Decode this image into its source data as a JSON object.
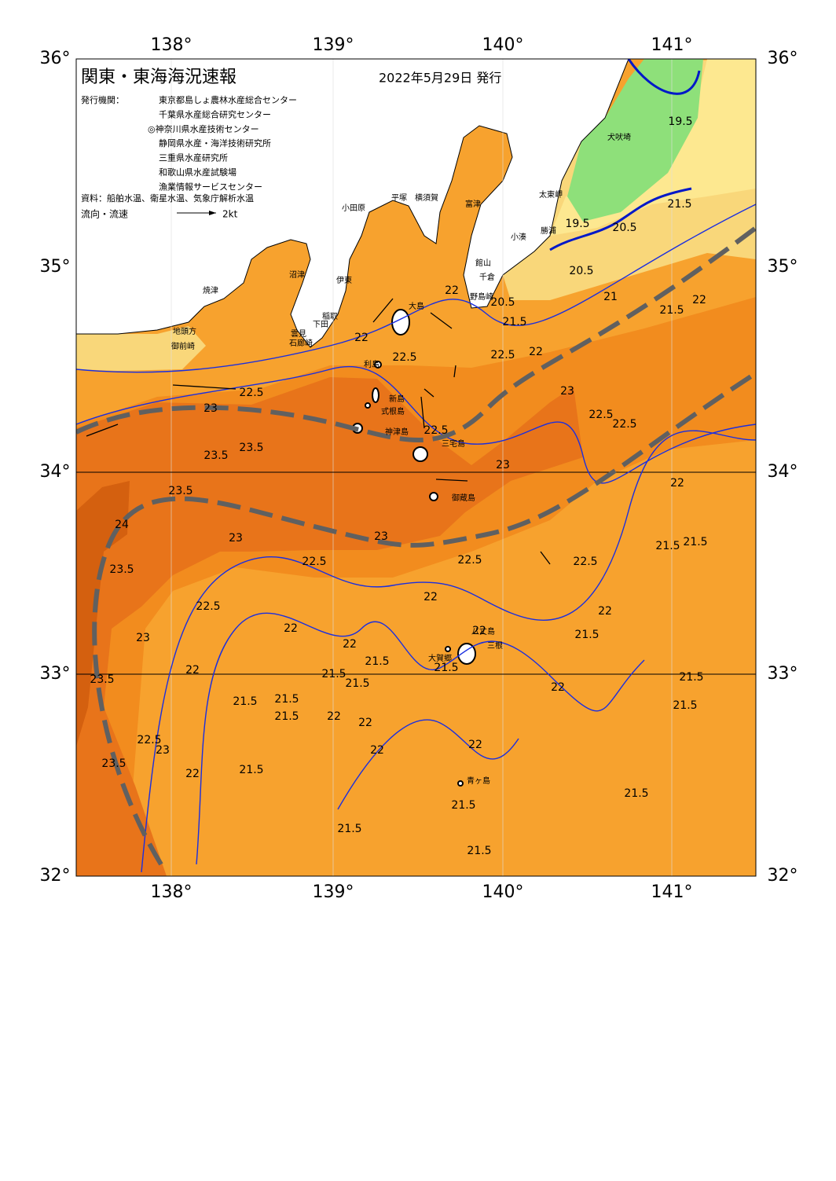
{
  "header": {
    "title": "関東・東海海況速報",
    "date": "2022年5月29日 発行"
  },
  "publisher": {
    "label": "発行機関：",
    "items": [
      "東京都島しょ農林水産総合センター",
      "千葉県水産総合研究センター",
      "◎神奈川県水産技術センター",
      "静岡県水産・海洋技術研究所",
      "三重県水産研究所",
      "和歌山県水産試験場",
      "漁業情報サービスセンター"
    ]
  },
  "source": "資料：船舶水温、衛星水温、気象庁解析水温",
  "legend": {
    "label": "流向・流速",
    "speed": "2kt"
  },
  "axes": {
    "lon": [
      "138°",
      "139°",
      "140°",
      "141°"
    ],
    "lat": [
      "36°",
      "35°",
      "34°",
      "33°",
      "32°"
    ]
  },
  "places": [
    "小田原",
    "平塚",
    "横須賀",
    "富津",
    "館山",
    "千倉",
    "野島崎",
    "大島",
    "利島",
    "新島",
    "式根島",
    "神津島",
    "三宅島",
    "御蔵島",
    "八丈島",
    "三根",
    "大賀郷",
    "青ヶ島",
    "犬吠埼",
    "太東岬",
    "勝浦",
    "小湊",
    "焼津",
    "地頭方",
    "御前崎",
    "沼津",
    "伊東",
    "稲取",
    "下田",
    "雲見",
    "石廊崎"
  ],
  "isotherms": [
    19.5,
    19.5,
    20.5,
    21.5,
    20.5,
    21,
    21.5,
    22,
    20.5,
    21.5,
    22.5,
    22,
    22,
    22.5,
    22,
    22.5,
    23,
    23.5,
    23.5,
    22.5,
    23,
    22.5,
    22.5,
    23,
    23.5,
    24,
    23,
    23,
    22.5,
    22.5,
    22.5,
    21.5,
    21.5,
    22,
    23.5,
    22.5,
    23,
    22,
    22,
    22,
    21.5,
    22,
    22,
    21.5,
    22,
    23.5,
    21.5,
    21.5,
    21.5,
    21.5,
    21.5,
    22,
    22,
    22,
    21.5,
    22,
    21.5,
    21.5,
    22,
    22.5,
    23,
    23.5,
    22,
    21.5,
    21.5,
    21.5,
    21.5,
    21.5
  ]
}
